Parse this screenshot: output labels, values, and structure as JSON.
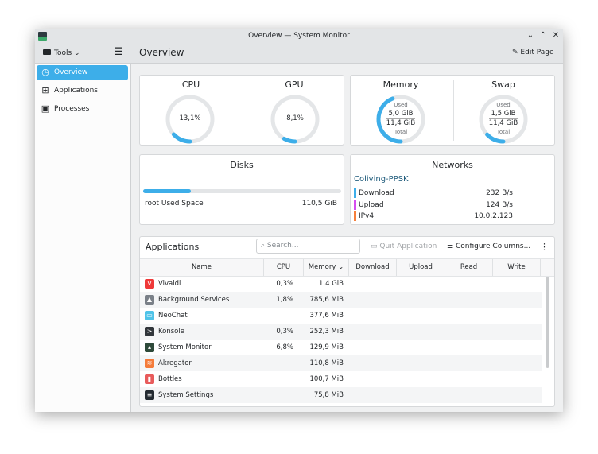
{
  "window": {
    "title": "Overview — System Monitor",
    "controls": [
      "minimize",
      "maximize",
      "close"
    ]
  },
  "toolbar": {
    "tools_label": "Tools",
    "page_title": "Overview",
    "edit_label": "Edit Page"
  },
  "sidebar": {
    "items": [
      {
        "label": "Overview",
        "icon": "speedometer-icon",
        "active": true
      },
      {
        "label": "Applications",
        "icon": "grid-icon"
      },
      {
        "label": "Processes",
        "icon": "window-icon"
      }
    ]
  },
  "gauges": [
    {
      "title": "CPU",
      "value": "13,1%",
      "fraction": 0.131
    },
    {
      "title": "GPU",
      "value": "8,1%",
      "fraction": 0.081
    },
    {
      "title": "Memory",
      "used_label": "Used",
      "used": "5,0 GiB",
      "total": "11,4 GiB",
      "total_label": "Total",
      "fraction": 0.44
    },
    {
      "title": "Swap",
      "used_label": "Used",
      "used": "1,5 GiB",
      "total": "11,4 GiB",
      "total_label": "Total",
      "fraction": 0.13
    }
  ],
  "disks": {
    "title": "Disks",
    "label": "root Used Space",
    "value": "110,5 GiB",
    "fraction": 0.24
  },
  "networks": {
    "title": "Networks",
    "name": "Coliving-PPSK",
    "rows": [
      {
        "label": "Download",
        "value": "232 B/s",
        "color": "#3daee9"
      },
      {
        "label": "Upload",
        "value": "124 B/s",
        "color": "#d64ef0"
      },
      {
        "label": "IPv4",
        "value": "10.0.2.123",
        "color": "#f67f3b"
      }
    ]
  },
  "applications": {
    "title": "Applications",
    "search_placeholder": "Search...",
    "quit_label": "Quit Application",
    "configure_label": "Configure Columns...",
    "columns": [
      "Name",
      "CPU",
      "Memory",
      "Download",
      "Upload",
      "Read",
      "Write"
    ],
    "rows": [
      {
        "name": "Vivaldi",
        "cpu": "0,3%",
        "memory": "1,4 GiB",
        "icon": "vivaldi-icon",
        "color": "#ef3939",
        "glyph": "V"
      },
      {
        "name": "Background Services",
        "cpu": "1,8%",
        "memory": "785,6 MiB",
        "icon": "bell-icon",
        "color": "#7a8088",
        "glyph": "▲"
      },
      {
        "name": "NeoChat",
        "cpu": "",
        "memory": "377,6 MiB",
        "icon": "neochat-icon",
        "color": "#4fc3e8",
        "glyph": "▭"
      },
      {
        "name": "Konsole",
        "cpu": "0,3%",
        "memory": "252,3 MiB",
        "icon": "terminal-icon",
        "color": "#31363b",
        "glyph": ">"
      },
      {
        "name": "System Monitor",
        "cpu": "6,8%",
        "memory": "129,9 MiB",
        "icon": "system-monitor-icon",
        "color": "#2e4a3a",
        "glyph": "▴"
      },
      {
        "name": "Akregator",
        "cpu": "",
        "memory": "110,8 MiB",
        "icon": "rss-icon",
        "color": "#f47b3a",
        "glyph": "≋"
      },
      {
        "name": "Bottles",
        "cpu": "",
        "memory": "100,7 MiB",
        "icon": "bottles-icon",
        "color": "#e85b5b",
        "glyph": "▮"
      },
      {
        "name": "System Settings",
        "cpu": "",
        "memory": "75,8 MiB",
        "icon": "settings-icon",
        "color": "#232a31",
        "glyph": "≡"
      }
    ]
  }
}
